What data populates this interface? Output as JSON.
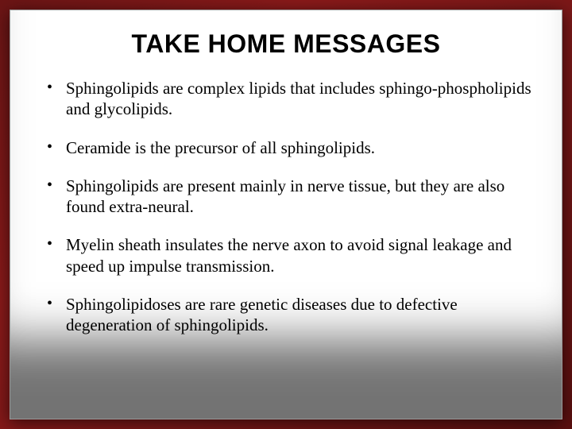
{
  "slide": {
    "title": "TAKE HOME MESSAGES",
    "bullets": [
      "Sphingolipids are complex lipids that includes sphingo-phospholipids and glycolipids.",
      "Ceramide is the precursor of all sphingolipids.",
      "Sphingolipids are present mainly in nerve tissue, but they are also found extra-neural.",
      "Myelin sheath insulates the nerve axon to avoid signal leakage and speed up impulse transmission.",
      "Sphingolipidoses are rare genetic diseases due to defective degeneration of sphingolipids."
    ]
  },
  "style": {
    "background_gradient": [
      "#6b1515",
      "#8b1a1a",
      "#7a1818",
      "#5a1010"
    ],
    "slide_background": "#ffffff",
    "title_color": "#000000",
    "title_fontsize": 32,
    "title_weight": "bold",
    "body_color": "#000000",
    "body_fontsize": 21,
    "body_font": "Times New Roman",
    "bullet_char": "•",
    "bottom_shadow_overlay": "rgba(0,0,0,0.55)"
  }
}
